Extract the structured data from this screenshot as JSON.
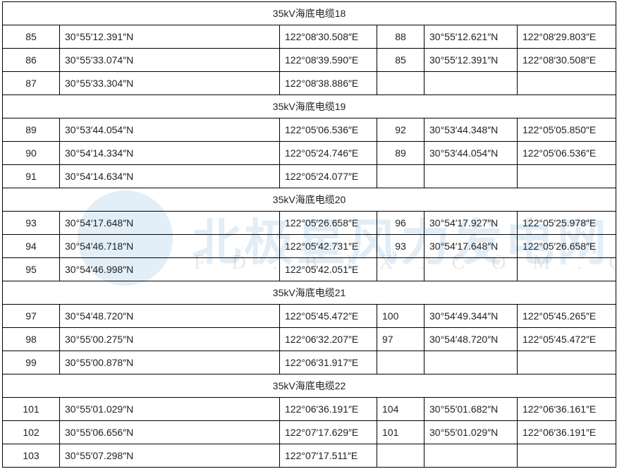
{
  "watermark": {
    "name": "北极星风力发电网",
    "url": "FD.BJX.COM.CN"
  },
  "sections": [
    {
      "title": "35kV海底电缆18",
      "num2_align": "center",
      "rows": [
        [
          "85",
          "30°55′12.391″N",
          "122°08′30.508″E",
          "88",
          "30°55′12.621″N",
          "122°08′29.803″E"
        ],
        [
          "86",
          "30°55′33.074″N",
          "122°08′39.590″E",
          "85",
          "30°55′12.391″N",
          "122°08′30.508″E"
        ],
        [
          "87",
          "30°55′33.304″N",
          "122°08′38.886″E",
          "",
          "",
          ""
        ]
      ]
    },
    {
      "title": "35kV海底电缆19",
      "num2_align": "center",
      "rows": [
        [
          "89",
          "30°53′44.054″N",
          "122°05′06.536″E",
          "92",
          "30°53′44.348″N",
          "122°05′05.850″E"
        ],
        [
          "90",
          "30°54′14.334″N",
          "122°05′24.746″E",
          "89",
          "30°53′44.054″N",
          "122°05′06.536″E"
        ],
        [
          "91",
          "30°54′14.634″N",
          "122°05′24.077″E",
          "",
          "",
          ""
        ]
      ]
    },
    {
      "title": "35kV海底电缆20",
      "num2_align": "center",
      "rows": [
        [
          "93",
          "30°54′17.648″N",
          "122°05′26.658″E",
          "96",
          "30°54′17.927″N",
          "122°05′25.978″E"
        ],
        [
          "94",
          "30°54′46.718″N",
          "122°05′42.731″E",
          "93",
          "30°54′17.648″N",
          "122°05′26.658″E"
        ],
        [
          "95",
          "30°54′46.998″N",
          "122°05′42.051″E",
          "",
          "",
          ""
        ]
      ]
    },
    {
      "title": "35kV海底电缆21",
      "num2_align": "left",
      "rows": [
        [
          "97",
          "30°54′48.720″N",
          "122°05′45.472″E",
          "100",
          "30°54′49.344″N",
          "122°05′45.265″E"
        ],
        [
          "98",
          "30°55′00.275″N",
          "122°06′32.207″E",
          "97",
          "30°54′48.720″N",
          "122°05′45.472″E"
        ],
        [
          "99",
          "30°55′00.878″N",
          "122°06′31.917″E",
          "",
          "",
          ""
        ]
      ]
    },
    {
      "title": "35kV海底电缆22",
      "num2_align": "left",
      "rows": [
        [
          "101",
          "30°55′01.029″N",
          "122°06′36.191″E",
          "104",
          "30°55′01.682″N",
          "122°06′36.161″E"
        ],
        [
          "102",
          "30°55′06.656″N",
          "122°07′17.629″E",
          "101",
          "30°55′01.029″N",
          "122°06′36.191″E"
        ],
        [
          "103",
          "30°55′07.298″N",
          "122°07′17.511″E",
          "",
          "",
          ""
        ]
      ]
    }
  ]
}
